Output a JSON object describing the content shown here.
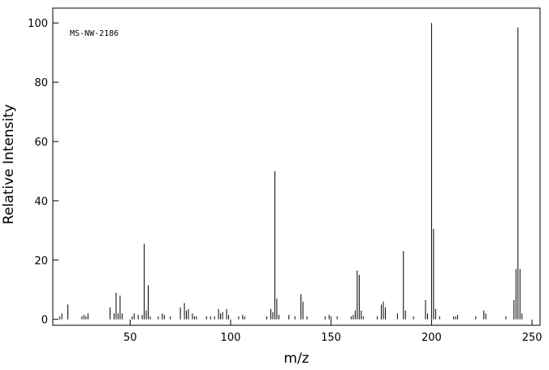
{
  "chart_data": {
    "type": "stem",
    "annotation": "MS-NW-2186",
    "xlabel": "m/z",
    "ylabel": "Relative Intensity",
    "color": "#000000",
    "x": [
      15,
      16,
      19,
      26,
      27,
      28,
      29,
      40,
      42,
      43,
      44,
      45,
      46,
      51,
      52,
      54,
      56,
      57,
      58,
      59,
      60,
      64,
      66,
      67,
      70,
      75,
      77,
      78,
      79,
      81,
      82,
      83,
      88,
      90,
      92,
      94,
      95,
      96,
      98,
      99,
      104,
      106,
      107,
      118,
      120,
      121,
      122,
      123,
      124,
      129,
      132,
      135,
      136,
      138,
      147,
      149,
      150,
      153,
      160,
      161,
      162,
      163,
      164,
      165,
      166,
      173,
      175,
      176,
      177,
      183,
      186,
      187,
      191,
      197,
      198,
      200,
      201,
      202,
      204,
      211,
      212,
      213,
      222,
      226,
      227,
      237,
      241,
      242,
      243,
      244,
      245
    ],
    "values": [
      1,
      2,
      5,
      1,
      1.5,
      1,
      2,
      4,
      2,
      9,
      2,
      8,
      2,
      1,
      2,
      1.5,
      1.5,
      25.5,
      3,
      11.5,
      1,
      1,
      2,
      1.5,
      1,
      4,
      5.5,
      3,
      3.5,
      2,
      1,
      1,
      1,
      1,
      1,
      3.5,
      2,
      2.5,
      3.5,
      1.5,
      1,
      1.5,
      1,
      1,
      3.5,
      2.5,
      50,
      7,
      1.5,
      1.5,
      1,
      8.5,
      6,
      1,
      1,
      1.5,
      1,
      1,
      1,
      1.5,
      3,
      16.5,
      15,
      3,
      1,
      1,
      5,
      6,
      4,
      2,
      23,
      3,
      1,
      6.5,
      2,
      100,
      30.5,
      3.5,
      1,
      1,
      1,
      1.5,
      1,
      3,
      2,
      1,
      6.5,
      17,
      98.5,
      17,
      2
    ],
    "xlim": [
      11.5,
      254
    ],
    "ylim": [
      -2,
      105
    ],
    "xticks": [
      50,
      100,
      150,
      200,
      250
    ],
    "yticks": [
      0,
      20,
      40,
      60,
      80,
      100
    ]
  }
}
